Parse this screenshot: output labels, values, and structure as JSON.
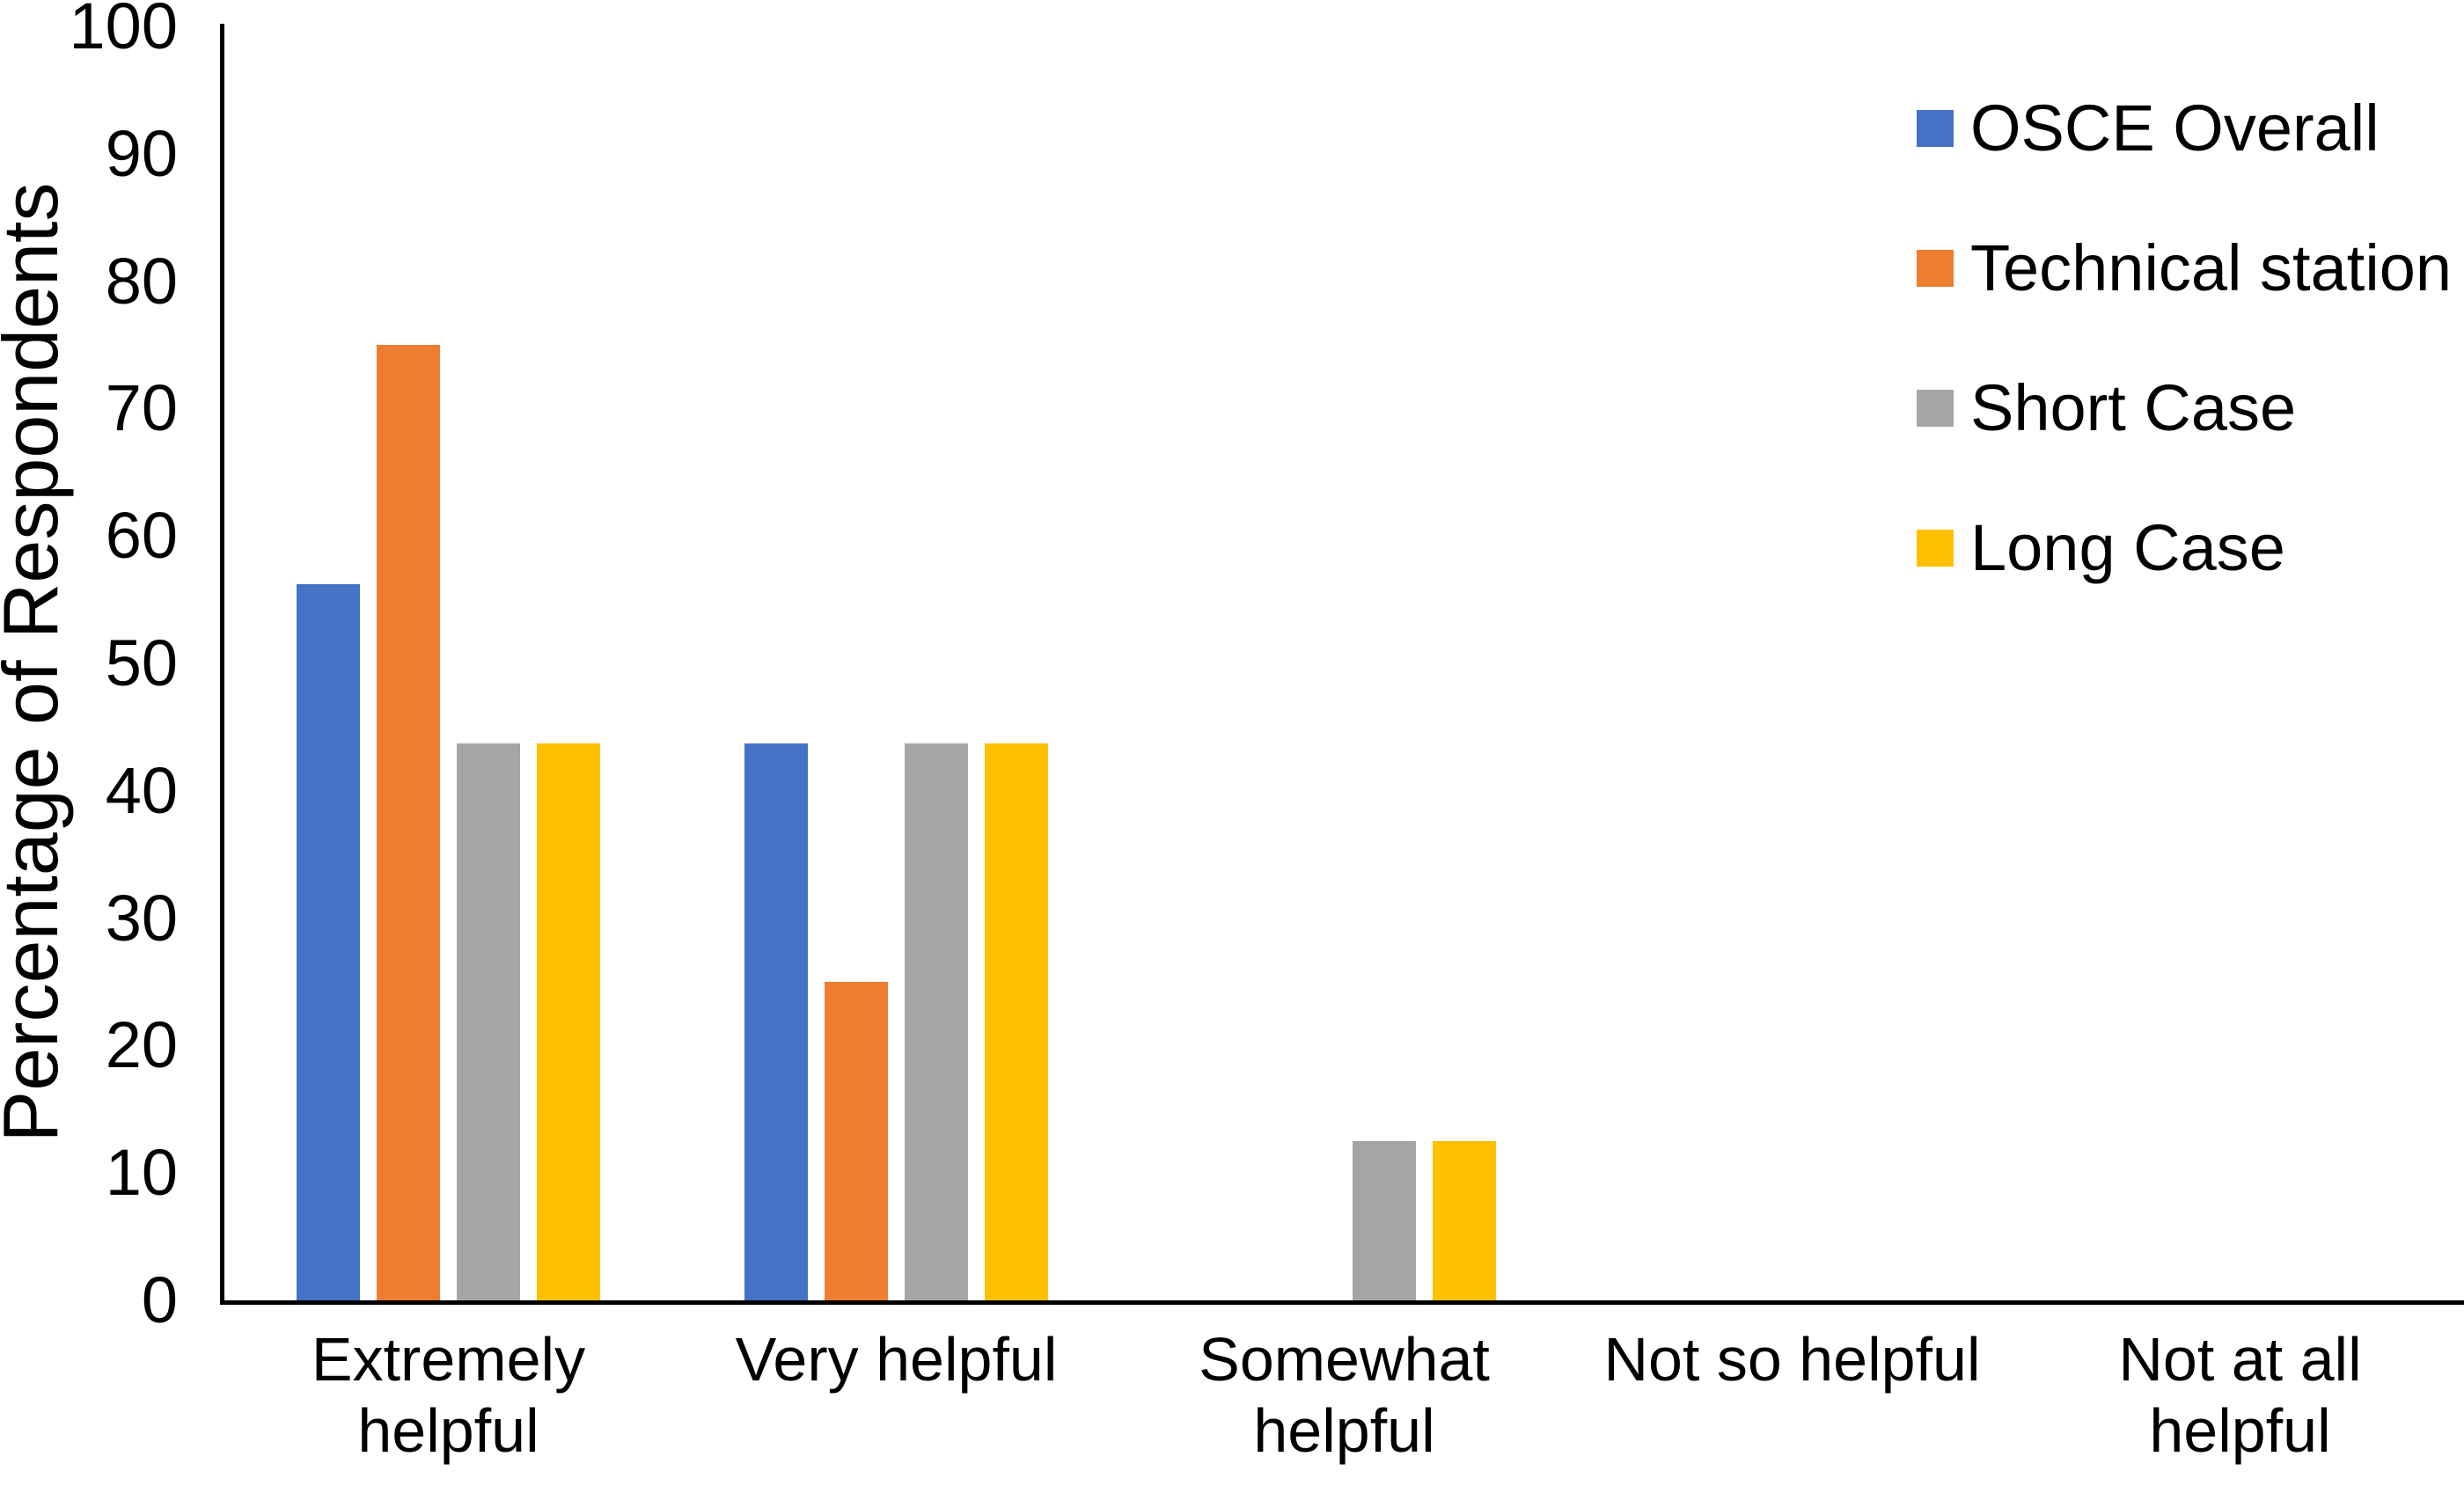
{
  "figure": {
    "background": "#FFFFFF",
    "axis_color": "#000000",
    "text_color": "#000000"
  },
  "chart_data": {
    "type": "bar",
    "title": "",
    "xlabel": "",
    "ylabel": "Percentage of Respondents",
    "ylim": [
      0,
      100
    ],
    "yticks": [
      0,
      10,
      20,
      30,
      40,
      50,
      60,
      70,
      80,
      90,
      100
    ],
    "grid": false,
    "legend_position": "right",
    "categories": [
      "Extremely\nhelpful",
      "Very helpful",
      "Somewhat\nhelpful",
      "Not so helpful",
      "Not at all\nhelpful"
    ],
    "series": [
      {
        "name": "OSCE Overall",
        "color": "#4472C4",
        "values": [
          56.25,
          43.75,
          0,
          0,
          0
        ]
      },
      {
        "name": "Technical station",
        "color": "#ED7D31",
        "values": [
          75,
          25,
          0,
          0,
          0
        ]
      },
      {
        "name": "Short Case",
        "color": "#A5A5A5",
        "values": [
          43.75,
          43.75,
          12.5,
          0,
          0
        ]
      },
      {
        "name": "Long Case",
        "color": "#FFC000",
        "values": [
          43.75,
          43.75,
          12.5,
          0,
          0
        ]
      }
    ]
  }
}
